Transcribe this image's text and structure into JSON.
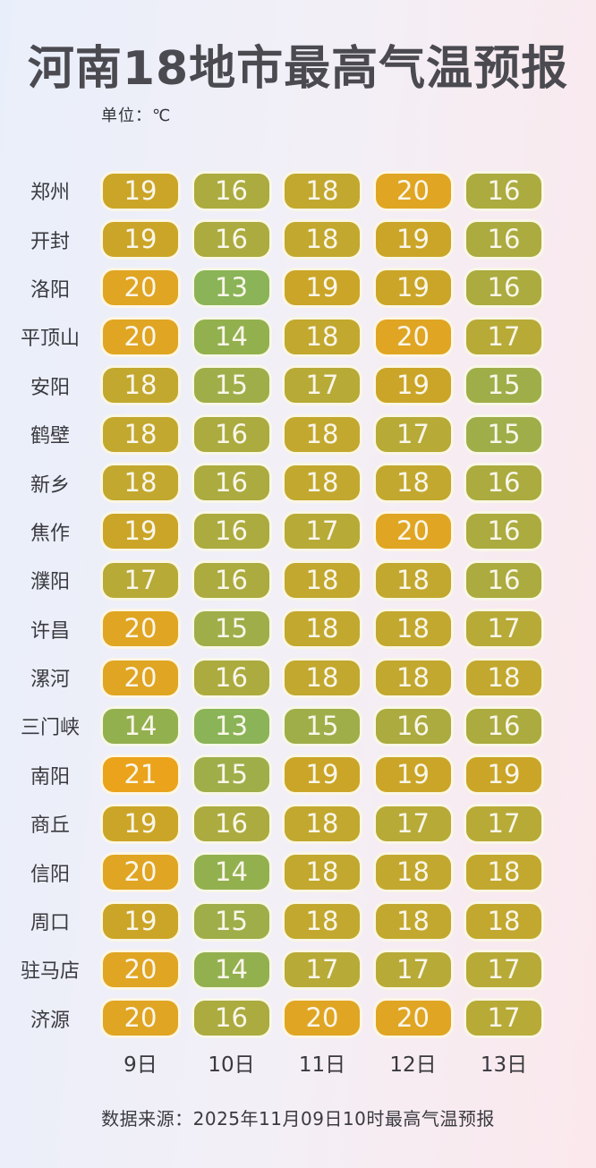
{
  "title": "河南18地市最高气温预报",
  "unit_label": "单位：℃",
  "footer": "数据来源：2025年11月09日10时最高气温预报",
  "columns": [
    "9日",
    "10日",
    "11日",
    "12日",
    "13日"
  ],
  "rows": [
    {
      "city": "郑州",
      "temps": [
        19,
        16,
        18,
        20,
        16
      ]
    },
    {
      "city": "开封",
      "temps": [
        19,
        16,
        18,
        19,
        16
      ]
    },
    {
      "city": "洛阳",
      "temps": [
        20,
        13,
        19,
        19,
        16
      ]
    },
    {
      "city": "平顶山",
      "temps": [
        20,
        14,
        18,
        20,
        17
      ]
    },
    {
      "city": "安阳",
      "temps": [
        18,
        15,
        17,
        19,
        15
      ]
    },
    {
      "city": "鹤壁",
      "temps": [
        18,
        16,
        18,
        17,
        15
      ]
    },
    {
      "city": "新乡",
      "temps": [
        18,
        16,
        18,
        18,
        16
      ]
    },
    {
      "city": "焦作",
      "temps": [
        19,
        16,
        17,
        20,
        16
      ]
    },
    {
      "city": "濮阳",
      "temps": [
        17,
        16,
        18,
        18,
        16
      ]
    },
    {
      "city": "许昌",
      "temps": [
        20,
        15,
        18,
        18,
        17
      ]
    },
    {
      "city": "漯河",
      "temps": [
        20,
        16,
        18,
        18,
        18
      ]
    },
    {
      "city": "三门峡",
      "temps": [
        14,
        13,
        15,
        16,
        16
      ]
    },
    {
      "city": "南阳",
      "temps": [
        21,
        15,
        19,
        19,
        19
      ]
    },
    {
      "city": "商丘",
      "temps": [
        19,
        16,
        18,
        17,
        17
      ]
    },
    {
      "city": "信阳",
      "temps": [
        20,
        14,
        18,
        18,
        18
      ]
    },
    {
      "city": "周口",
      "temps": [
        19,
        15,
        18,
        18,
        18
      ]
    },
    {
      "city": "驻马店",
      "temps": [
        20,
        14,
        17,
        17,
        17
      ]
    },
    {
      "city": "济源",
      "temps": [
        20,
        16,
        20,
        20,
        17
      ]
    }
  ],
  "colors": {
    "background_left": "#e9effa",
    "background_right": "#fbe8ec",
    "pill_text": "#f9f6ea",
    "pill_border": "#fffdf5",
    "text_dark": "#3a3a40",
    "temp_scale": {
      "13": "#8ab457",
      "14": "#93b04f",
      "15": "#9fae49",
      "16": "#abab3f",
      "17": "#b7aa37",
      "18": "#c2a82e",
      "19": "#cba527",
      "20": "#e0a522",
      "21": "#eaa31b"
    }
  },
  "chart_data": {
    "type": "heatmap",
    "title": "河南18地市最高气温预报",
    "unit": "℃",
    "x_categories": [
      "9日",
      "10日",
      "11日",
      "12日",
      "13日"
    ],
    "y_categories": [
      "郑州",
      "开封",
      "洛阳",
      "平顶山",
      "安阳",
      "鹤壁",
      "新乡",
      "焦作",
      "濮阳",
      "许昌",
      "漯河",
      "三门峡",
      "南阳",
      "商丘",
      "信阳",
      "周口",
      "驻马店",
      "济源"
    ],
    "values": [
      [
        19,
        16,
        18,
        20,
        16
      ],
      [
        19,
        16,
        18,
        19,
        16
      ],
      [
        20,
        13,
        19,
        19,
        16
      ],
      [
        20,
        14,
        18,
        20,
        17
      ],
      [
        18,
        15,
        17,
        19,
        15
      ],
      [
        18,
        16,
        18,
        17,
        15
      ],
      [
        18,
        16,
        18,
        18,
        16
      ],
      [
        19,
        16,
        17,
        20,
        16
      ],
      [
        17,
        16,
        18,
        18,
        16
      ],
      [
        20,
        15,
        18,
        18,
        17
      ],
      [
        20,
        16,
        18,
        18,
        18
      ],
      [
        14,
        13,
        15,
        16,
        16
      ],
      [
        21,
        15,
        19,
        19,
        19
      ],
      [
        19,
        16,
        18,
        17,
        17
      ],
      [
        20,
        14,
        18,
        18,
        18
      ],
      [
        19,
        15,
        18,
        18,
        18
      ],
      [
        20,
        14,
        17,
        17,
        17
      ],
      [
        20,
        16,
        20,
        20,
        17
      ]
    ],
    "value_range": [
      13,
      21
    ],
    "color_low": "#8ab457",
    "color_high": "#eaa31b",
    "source_note": "数据来源：2025年11月09日10时最高气温预报"
  }
}
